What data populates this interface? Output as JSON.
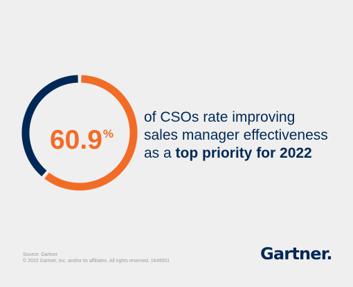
{
  "chart_data": {
    "type": "pie",
    "value_label": "60.9",
    "unit": "%",
    "series": [
      {
        "value": 60.9,
        "color": "#f26c27"
      },
      {
        "value": 39.1,
        "color": "#002856"
      }
    ]
  },
  "statement": {
    "line1": "of CSOs rate improving",
    "line2": "sales manager effectiveness",
    "line3_plain": "as a ",
    "line3_bold": "top priority for 2022"
  },
  "footer": {
    "source": "Source: Gartner",
    "copyright": "© 2022 Gartner, Inc. and/or its affiliates. All rights reserved. 1649551"
  },
  "logo": {
    "text": "Gartner."
  },
  "colors": {
    "background": "#efefef",
    "accent": "#f26c27",
    "brand": "#002856"
  }
}
